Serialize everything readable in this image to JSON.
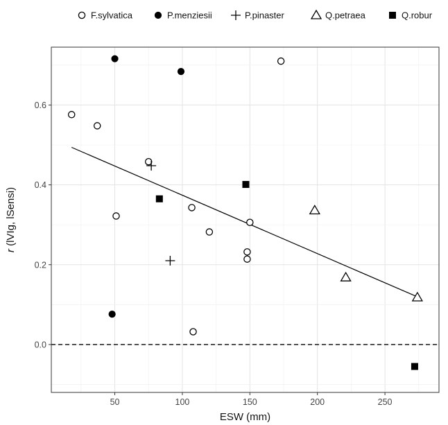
{
  "chart_data": {
    "type": "scatter",
    "title": "",
    "xlabel": "ESW (mm)",
    "ylabel_italic": "r",
    "ylabel_rest": " (lVIg, lSensi)",
    "xlim": [
      3,
      290
    ],
    "ylim": [
      -0.12,
      0.745
    ],
    "xticks": [
      50,
      100,
      150,
      200,
      250
    ],
    "yticks": [
      0.0,
      0.2,
      0.4,
      0.6
    ],
    "ytick_labels": [
      "0.0",
      "0.2",
      "0.4",
      "0.6"
    ],
    "grid": true,
    "legend_position": "top",
    "series": [
      {
        "name": "F.sylvatica",
        "marker": "open-circle",
        "points": [
          [
            18,
            0.576
          ],
          [
            37,
            0.548
          ],
          [
            51,
            0.322
          ],
          [
            75,
            0.458
          ],
          [
            107,
            0.343
          ],
          [
            108,
            0.032
          ],
          [
            120,
            0.282
          ],
          [
            148,
            0.232
          ],
          [
            148,
            0.214
          ],
          [
            150,
            0.306
          ],
          [
            173,
            0.71
          ]
        ]
      },
      {
        "name": "P.menziesii",
        "marker": "filled-circle",
        "points": [
          [
            48,
            0.076
          ],
          [
            50,
            0.716
          ],
          [
            99,
            0.684
          ]
        ]
      },
      {
        "name": "P.pinaster",
        "marker": "plus",
        "points": [
          [
            77,
            0.448
          ],
          [
            91,
            0.21
          ]
        ]
      },
      {
        "name": "Q.petraea",
        "marker": "open-triangle",
        "points": [
          [
            198,
            0.336
          ],
          [
            221,
            0.168
          ],
          [
            274,
            0.118
          ]
        ]
      },
      {
        "name": "Q.robur",
        "marker": "filled-square",
        "points": [
          [
            83,
            0.365
          ],
          [
            147,
            0.401
          ],
          [
            272,
            -0.055
          ]
        ]
      }
    ],
    "fit_line": {
      "x": [
        18,
        275
      ],
      "y": [
        0.494,
        0.118
      ]
    },
    "reference_line": {
      "y": 0,
      "style": "dashed"
    }
  }
}
